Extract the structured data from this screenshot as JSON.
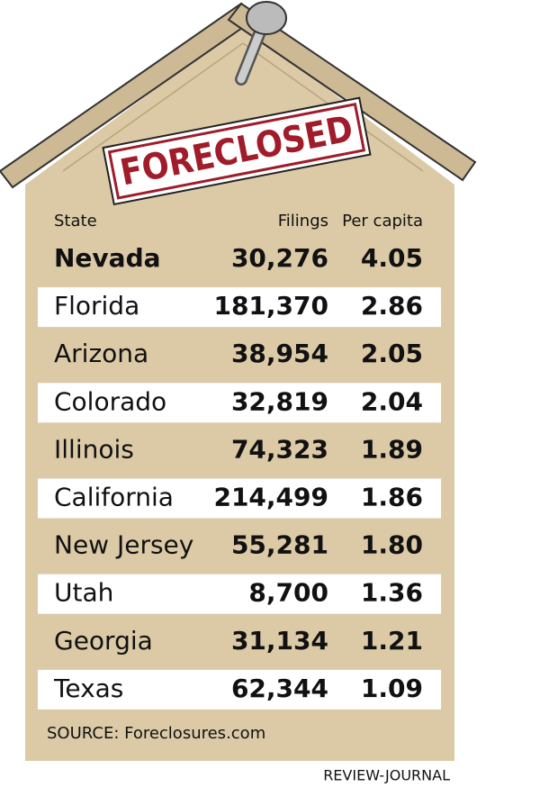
{
  "header": {
    "title": "FORECLOSED"
  },
  "table": {
    "columns": [
      "State",
      "Filings",
      "Per capita"
    ],
    "rows": [
      [
        "Nevada",
        "30,276",
        "4.05"
      ],
      [
        "Florida",
        "181,370",
        "2.86"
      ],
      [
        "Arizona",
        "38,954",
        "2.05"
      ],
      [
        "Colorado",
        "32,819",
        "2.04"
      ],
      [
        "Illinois",
        "74,323",
        "1.89"
      ],
      [
        "California",
        "214,499",
        "1.86"
      ],
      [
        "New Jersey",
        "55,281",
        "1.80"
      ],
      [
        "Utah",
        "8,700",
        "1.36"
      ],
      [
        "Georgia",
        "31,134",
        "1.21"
      ],
      [
        "Texas",
        "62,344",
        "1.09"
      ]
    ]
  },
  "source": "SOURCE: Foreclosures.com",
  "credit": "REVIEW-JOURNAL"
}
